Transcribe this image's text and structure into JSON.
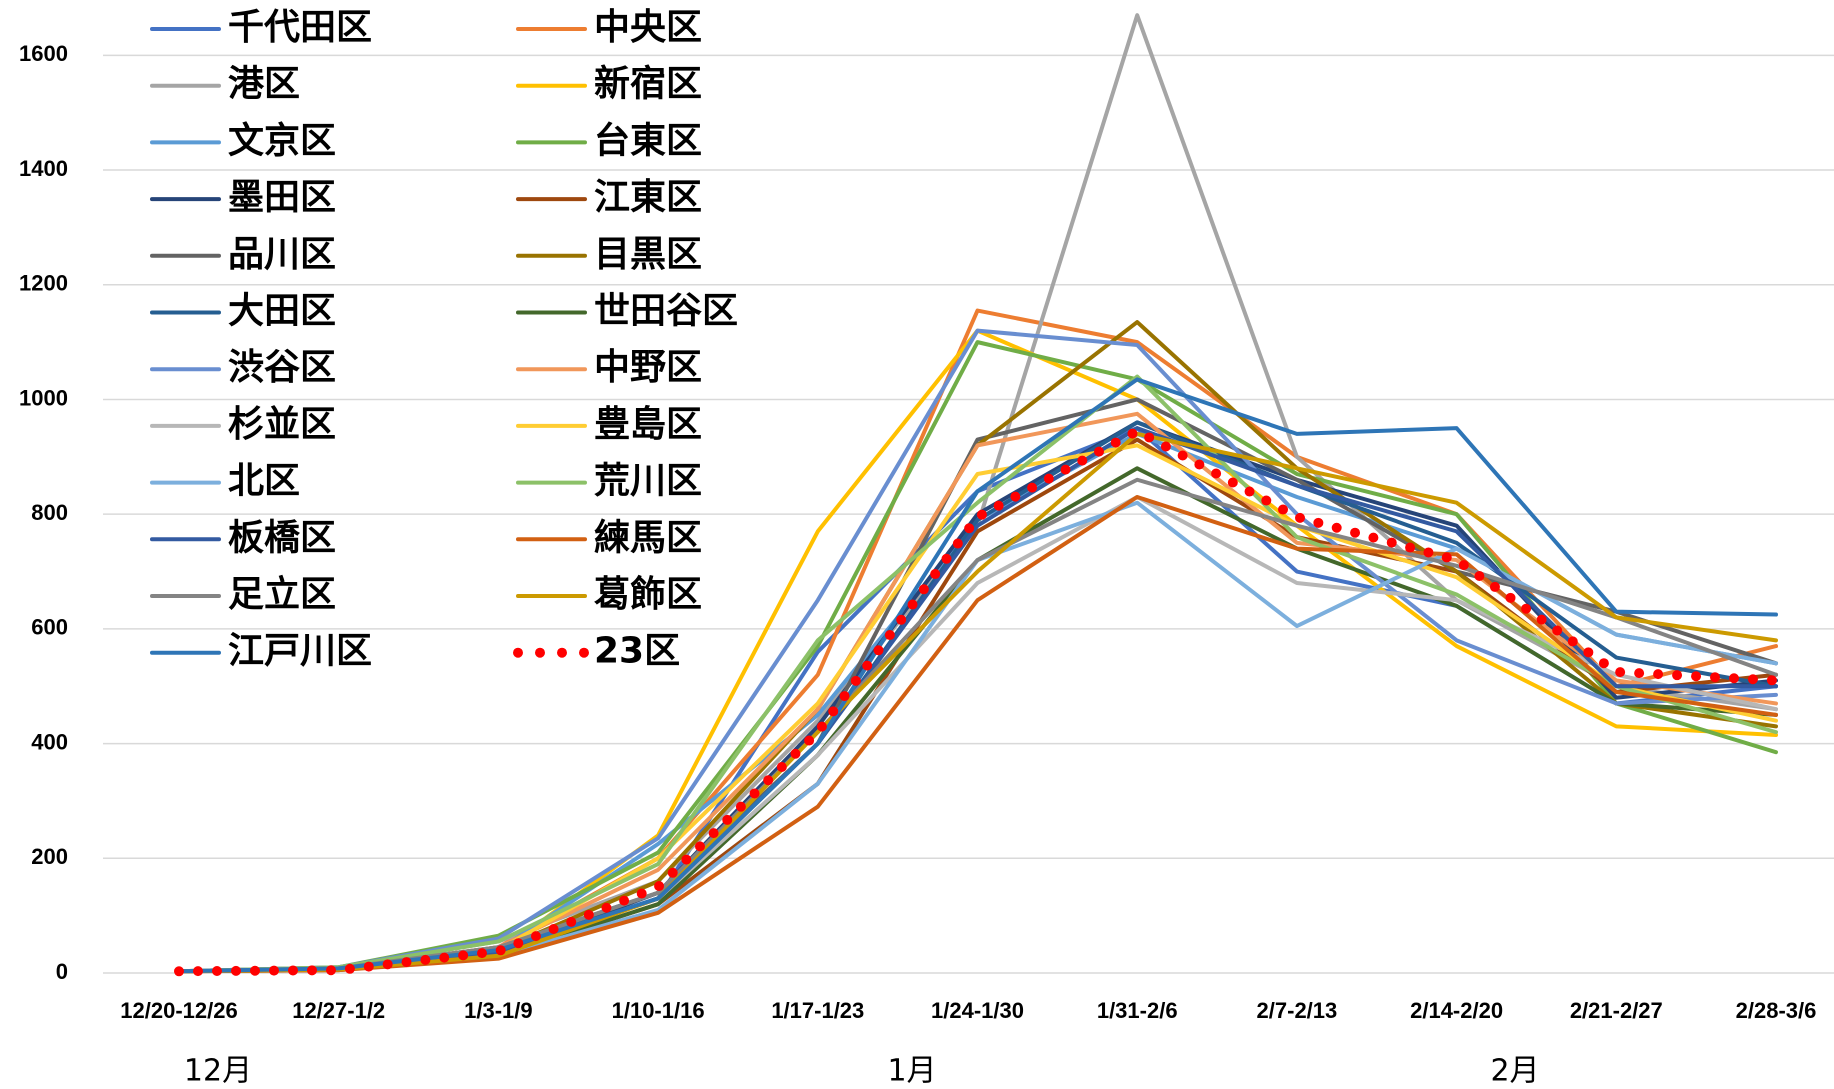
{
  "chart_data": {
    "type": "line",
    "categories": [
      "12/20-12/26",
      "12/27-1/2",
      "1/3-1/9",
      "1/10-1/16",
      "1/17-1/23",
      "1/24-1/30",
      "1/31-2/6",
      "2/7-2/13",
      "2/14-2/20",
      "2/21-2/27",
      "2/28-3/6"
    ],
    "x_groups": [
      "12月",
      "1月",
      "2月"
    ],
    "ylim": [
      0,
      1700
    ],
    "yticks": [
      0,
      200,
      400,
      600,
      800,
      1000,
      1200,
      1400,
      1600
    ],
    "grid": true,
    "legend": "top-left",
    "series": [
      {
        "name": "千代田区",
        "color": "#4472c4",
        "values": [
          3,
          8,
          40,
          130,
          560,
          840,
          950,
          700,
          640,
          470,
          500
        ]
      },
      {
        "name": "中央区",
        "color": "#ed7d31",
        "values": [
          3,
          8,
          45,
          200,
          520,
          1155,
          1100,
          900,
          800,
          500,
          570
        ]
      },
      {
        "name": "港区",
        "color": "#a5a5a5",
        "values": [
          3,
          10,
          55,
          160,
          440,
          780,
          1670,
          900,
          650,
          500,
          460
        ]
      },
      {
        "name": "新宿区",
        "color": "#ffc000",
        "values": [
          3,
          6,
          35,
          240,
          770,
          1120,
          1000,
          780,
          570,
          430,
          415
        ]
      },
      {
        "name": "文京区",
        "color": "#5b9bd5",
        "values": [
          3,
          8,
          40,
          225,
          450,
          790,
          940,
          830,
          740,
          590,
          540
        ]
      },
      {
        "name": "台東区",
        "color": "#70ad47",
        "values": [
          3,
          10,
          65,
          210,
          570,
          1100,
          1035,
          870,
          800,
          470,
          385
        ]
      },
      {
        "name": "墨田区",
        "color": "#264478",
        "values": [
          3,
          6,
          35,
          140,
          430,
          800,
          960,
          860,
          780,
          480,
          510
        ]
      },
      {
        "name": "江東区",
        "color": "#9e480e",
        "values": [
          3,
          5,
          30,
          120,
          330,
          770,
          930,
          760,
          700,
          490,
          520
        ]
      },
      {
        "name": "品川区",
        "color": "#636363",
        "values": [
          3,
          8,
          45,
          140,
          400,
          930,
          1000,
          860,
          700,
          630,
          540
        ]
      },
      {
        "name": "目黒区",
        "color": "#997300",
        "values": [
          3,
          8,
          40,
          160,
          460,
          920,
          1135,
          880,
          700,
          470,
          430
        ]
      },
      {
        "name": "大田区",
        "color": "#255e91",
        "values": [
          3,
          6,
          35,
          130,
          400,
          790,
          960,
          850,
          750,
          550,
          500
        ]
      },
      {
        "name": "世田谷区",
        "color": "#43682b",
        "values": [
          3,
          6,
          30,
          120,
          380,
          720,
          880,
          740,
          640,
          470,
          450
        ]
      },
      {
        "name": "渋谷区",
        "color": "#698ed0",
        "values": [
          3,
          10,
          60,
          235,
          650,
          1120,
          1095,
          800,
          580,
          470,
          485
        ]
      },
      {
        "name": "中野区",
        "color": "#f1975a",
        "values": [
          3,
          8,
          45,
          180,
          460,
          920,
          975,
          750,
          720,
          510,
          470
        ]
      },
      {
        "name": "杉並区",
        "color": "#b7b7b7",
        "values": [
          3,
          6,
          35,
          130,
          380,
          680,
          830,
          680,
          650,
          520,
          460
        ]
      },
      {
        "name": "豊島区",
        "color": "#ffcd33",
        "values": [
          3,
          8,
          40,
          200,
          470,
          870,
          920,
          780,
          690,
          500,
          440
        ]
      },
      {
        "name": "北区",
        "color": "#7cafdd",
        "values": [
          3,
          6,
          30,
          110,
          330,
          720,
          820,
          605,
          740,
          590,
          540
        ]
      },
      {
        "name": "荒川区",
        "color": "#8cc168",
        "values": [
          3,
          10,
          55,
          190,
          580,
          820,
          1040,
          760,
          660,
          500,
          420
        ]
      },
      {
        "name": "板橋区",
        "color": "#335aa1",
        "values": [
          3,
          6,
          35,
          130,
          400,
          780,
          950,
          850,
          770,
          500,
          500
        ]
      },
      {
        "name": "練馬区",
        "color": "#d26012",
        "values": [
          3,
          5,
          25,
          105,
          290,
          650,
          830,
          740,
          730,
          490,
          450
        ]
      },
      {
        "name": "足立区",
        "color": "#848484",
        "values": [
          3,
          8,
          45,
          140,
          420,
          720,
          860,
          780,
          710,
          620,
          520
        ]
      },
      {
        "name": "葛飾区",
        "color": "#cc9a00",
        "values": [
          3,
          6,
          30,
          130,
          420,
          700,
          940,
          880,
          820,
          620,
          580
        ]
      },
      {
        "name": "江戸川区",
        "color": "#2e75b6",
        "values": [
          3,
          8,
          40,
          130,
          400,
          840,
          1035,
          940,
          950,
          630,
          625
        ]
      },
      {
        "name": "23区",
        "color": "#ff0000",
        "style": "dotted",
        "values": [
          3,
          5,
          38,
          150,
          420,
          795,
          945,
          795,
          720,
          525,
          510
        ]
      }
    ]
  }
}
